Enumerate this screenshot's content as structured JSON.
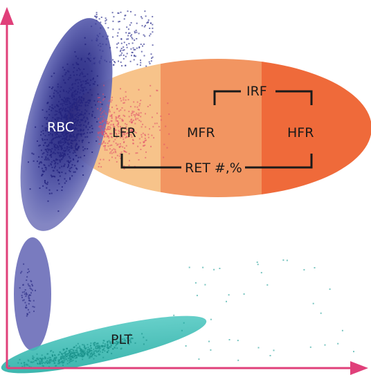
{
  "labels": {
    "rbc": "RBC",
    "lfr": "LFR",
    "mfr": "MFR",
    "hfr": "HFR",
    "irf": "IRF",
    "ret": "RET #,%",
    "plt": "PLT"
  },
  "colors": {
    "axis": "#e0407a",
    "rbc": "#5b5fae",
    "rbc_core": "#2a2a8a",
    "lfr": "#f7c38a",
    "mfr": "#f29561",
    "hfr": "#ef6a3a",
    "plt": "#3bbfb8",
    "plt_dots": "#1e9e96",
    "ret_dots": "#e04a6a",
    "bracket": "#1a1a1a"
  }
}
